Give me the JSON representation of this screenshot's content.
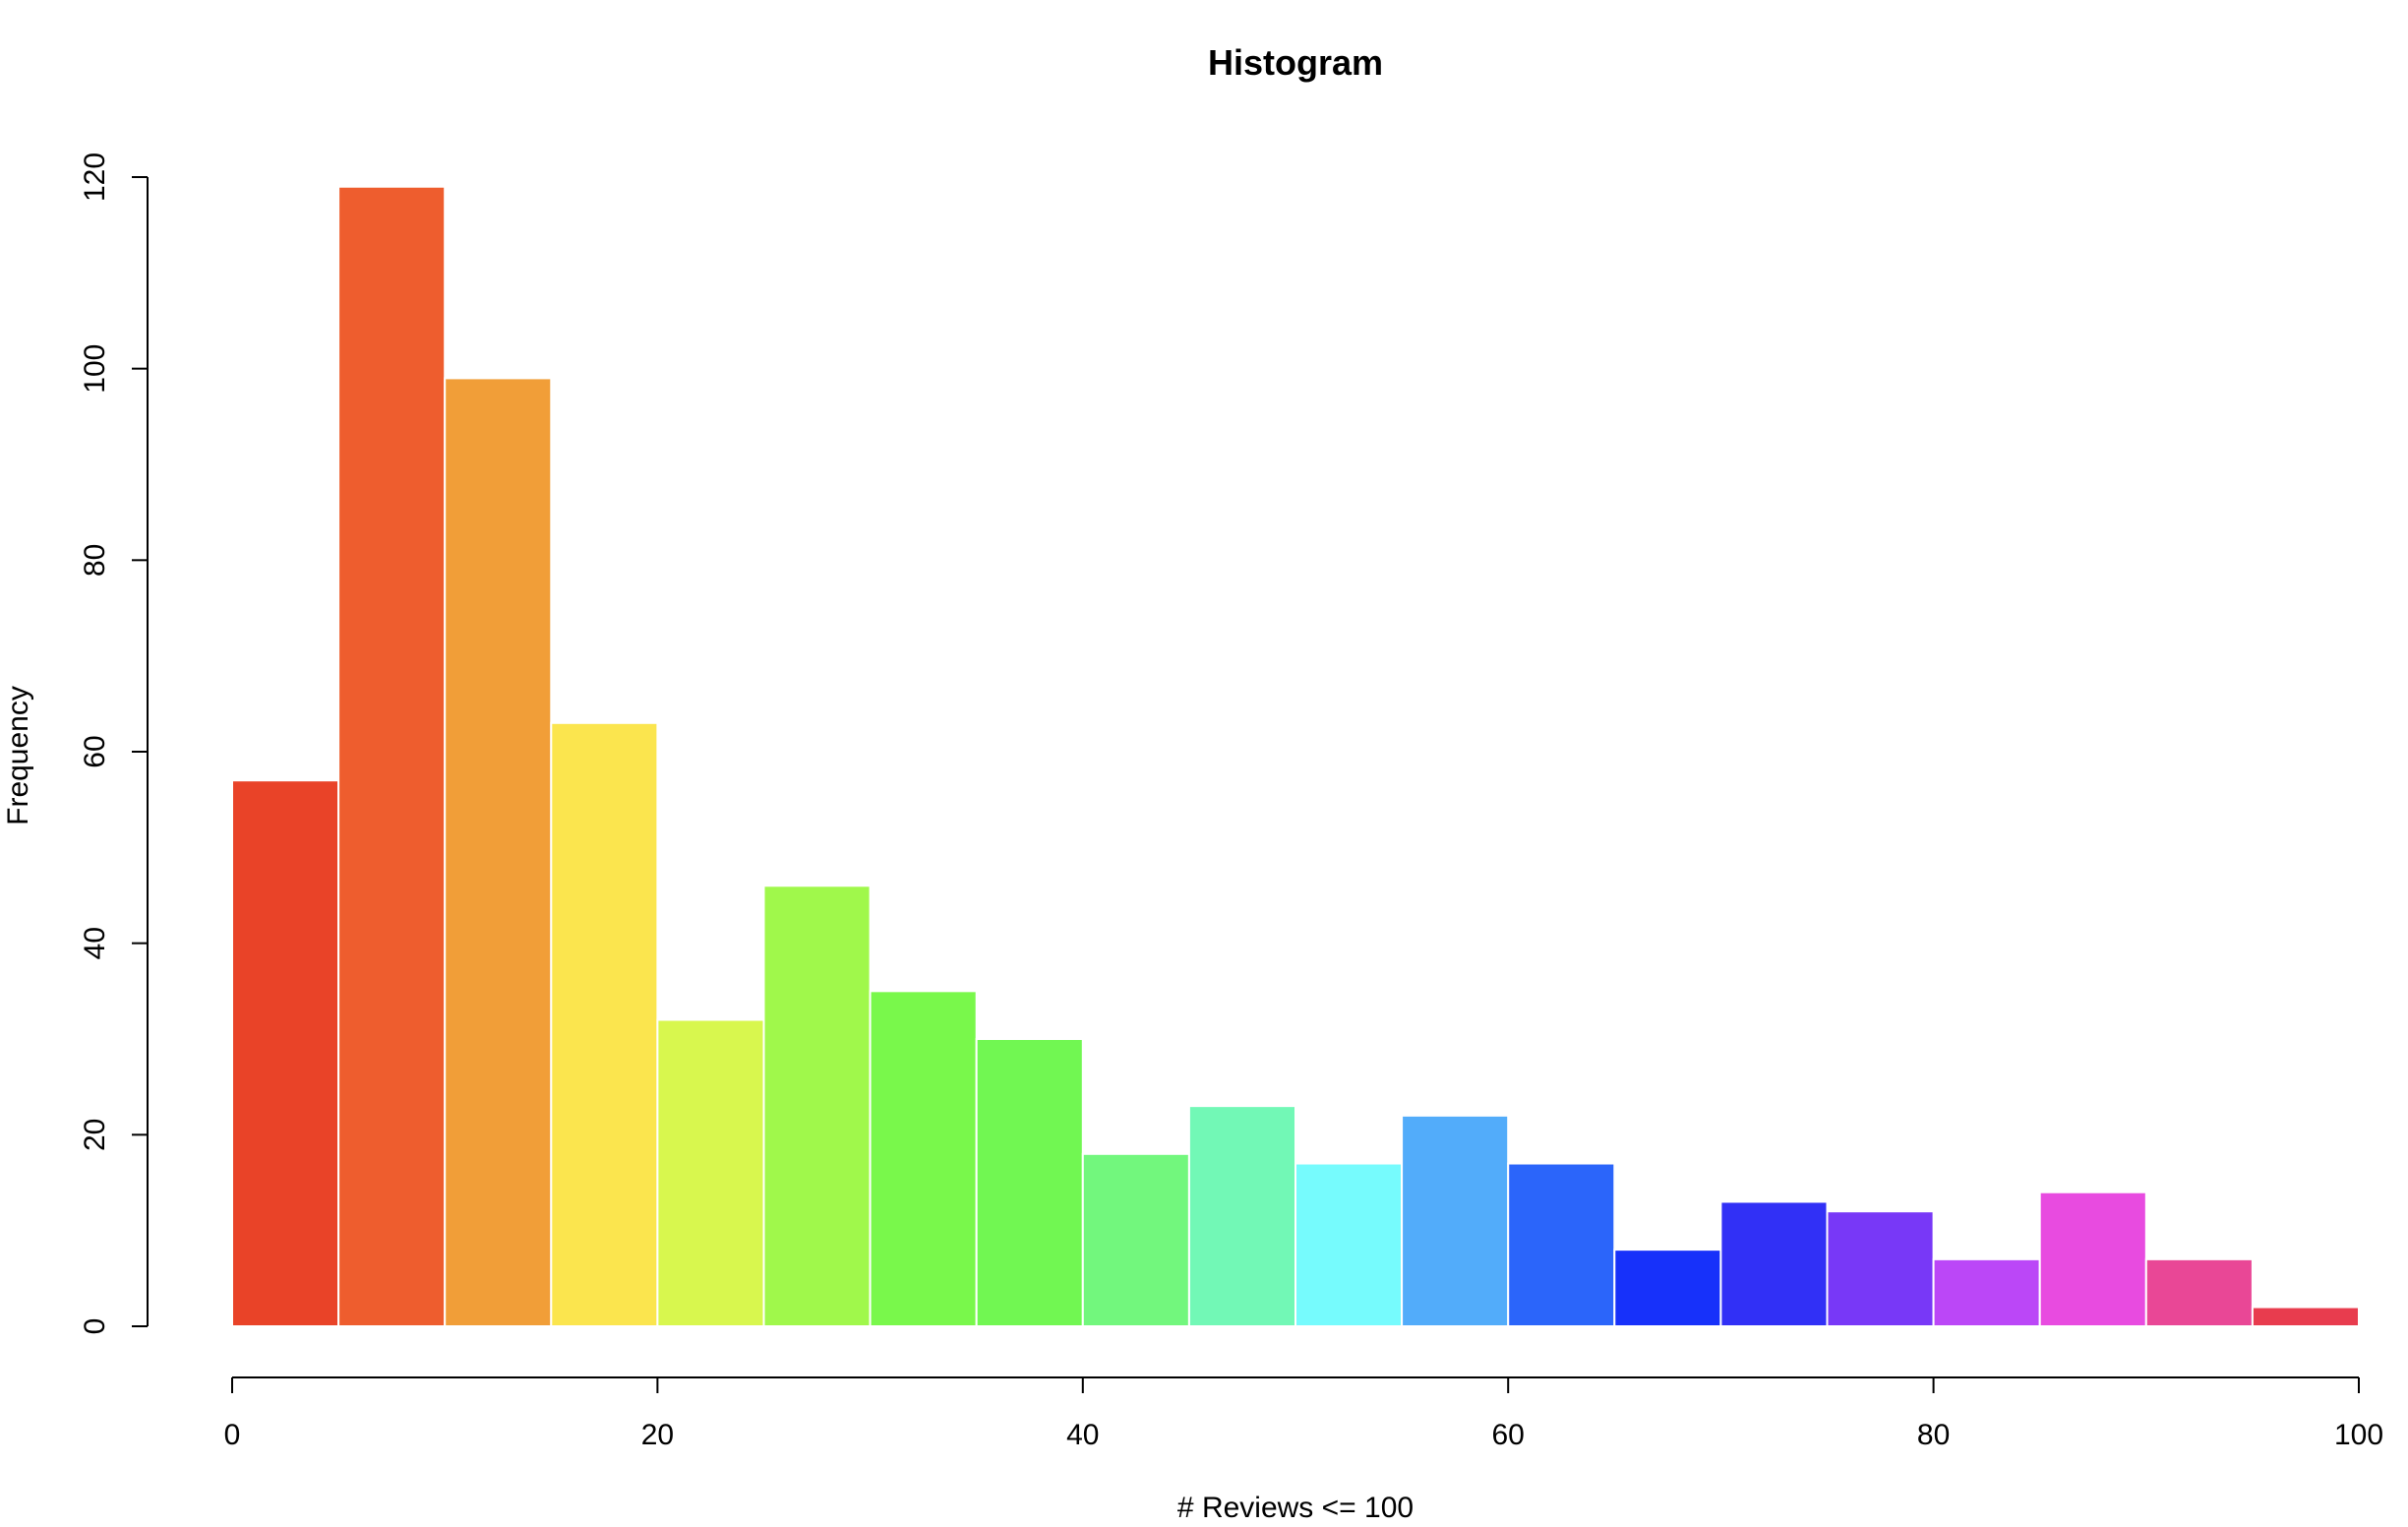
{
  "chart_data": {
    "type": "bar",
    "title": "Histogram",
    "xlabel": "# Reviews <= 100",
    "ylabel": "Frequency",
    "bin_edges": [
      0,
      5,
      10,
      15,
      20,
      25,
      30,
      35,
      40,
      45,
      50,
      55,
      60,
      65,
      70,
      75,
      80,
      85,
      90,
      95,
      100
    ],
    "values": [
      57,
      119,
      99,
      63,
      32,
      46,
      35,
      30,
      18,
      23,
      17,
      22,
      17,
      8,
      13,
      12,
      7,
      14,
      7,
      2
    ],
    "colors": [
      "#E94328",
      "#EE5D2E",
      "#F19E38",
      "#FBE54E",
      "#D8F74E",
      "#A0F84B",
      "#79F84B",
      "#71F752",
      "#72F77D",
      "#72F8B6",
      "#76FBFD",
      "#52ACFA",
      "#2B65FA",
      "#1731FA",
      "#3130F6",
      "#7838F7",
      "#BB47F7",
      "#E84BE0",
      "#E94796",
      "#E83C4E"
    ],
    "xlim": [
      0,
      100
    ],
    "ylim": [
      0,
      120
    ],
    "x_ticks": [
      0,
      20,
      40,
      60,
      80,
      100
    ],
    "y_ticks": [
      0,
      20,
      40,
      60,
      80,
      100,
      120
    ],
    "grid": false,
    "legend": "none"
  }
}
